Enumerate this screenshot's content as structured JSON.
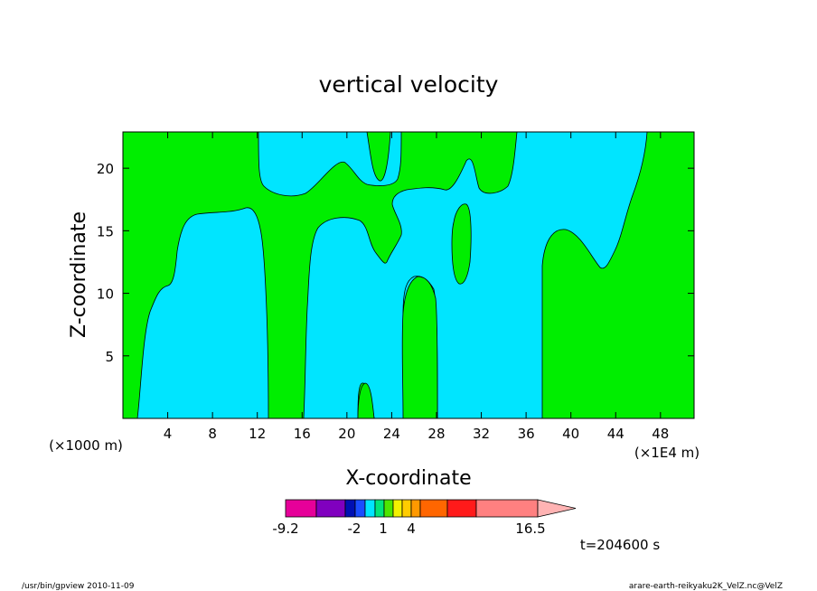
{
  "chart_data": {
    "type": "heatmap",
    "title": "vertical velocity",
    "xlabel": "X-coordinate",
    "ylabel": "Z-coordinate",
    "x_unit_left": "(×1000 m)",
    "x_unit_right": "(×1E4 m)",
    "xlim": [
      0,
      51
    ],
    "ylim": [
      0,
      22.9
    ],
    "x_ticks": [
      4,
      8,
      12,
      16,
      20,
      24,
      28,
      32,
      36,
      40,
      44,
      48
    ],
    "y_ticks": [
      5,
      10,
      15,
      20
    ],
    "time_label": "t=204600  s",
    "colorbar": {
      "colors": [
        "#e60099",
        "#8000bf",
        "#0010b3",
        "#1a4dff",
        "#00e5ff",
        "#00e57a",
        "#4de600",
        "#f2f200",
        "#ffcc00",
        "#ff9900",
        "#ff6600",
        "#ff1a1a",
        "#ff8080",
        "#ffb3b3"
      ],
      "tick_labels": [
        "-9.2",
        "-2",
        "1",
        "4",
        "16.5"
      ]
    },
    "regions": [
      {
        "name": "background",
        "color": "#00ee00"
      },
      {
        "name": "weak-updraft-region",
        "color": "#00e5ff"
      },
      {
        "name": "downdraft-region",
        "color": "#00ee00"
      }
    ]
  },
  "footer": {
    "left": "/usr/bin/gpview   2010-11-09",
    "right": "arare-earth-reikyaku2K_VelZ.nc@VelZ"
  }
}
